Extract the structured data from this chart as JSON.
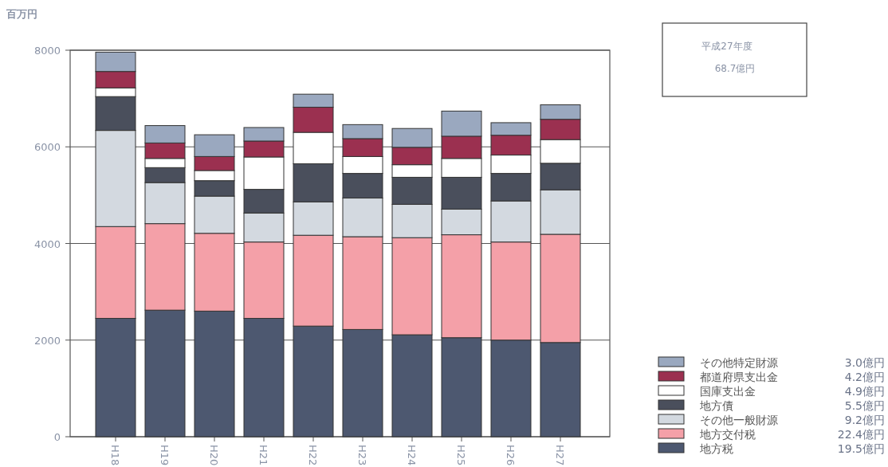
{
  "chart_data": {
    "type": "bar",
    "stacked": true,
    "ylabel": "百万円",
    "categories": [
      "H18",
      "H19",
      "H20",
      "H21",
      "H22",
      "H23",
      "H24",
      "H25",
      "H26",
      "H27"
    ],
    "series": [
      {
        "name": "地方税",
        "color": "#4d5870",
        "values": [
          2450,
          2620,
          2600,
          2450,
          2290,
          2220,
          2110,
          2050,
          2000,
          1950
        ]
      },
      {
        "name": "地方交付税",
        "color": "#f4a0a8",
        "values": [
          1900,
          1790,
          1610,
          1580,
          1880,
          1920,
          2010,
          2130,
          2030,
          2240
        ]
      },
      {
        "name": "その他一般財源",
        "color": "#d3d9e0",
        "values": [
          1990,
          850,
          770,
          600,
          690,
          800,
          690,
          530,
          850,
          920
        ]
      },
      {
        "name": "地方債",
        "color": "#4a4f5c",
        "values": [
          700,
          310,
          320,
          490,
          790,
          510,
          560,
          660,
          570,
          550
        ]
      },
      {
        "name": "国庫支出金",
        "color": "#ffffff",
        "values": [
          180,
          190,
          210,
          670,
          650,
          350,
          260,
          390,
          380,
          490
        ]
      },
      {
        "name": "都道府県支出金",
        "color": "#9b3050",
        "values": [
          340,
          320,
          290,
          330,
          520,
          370,
          360,
          460,
          410,
          420
        ]
      },
      {
        "name": "その他特定財源",
        "color": "#9aa8bf",
        "values": [
          400,
          360,
          450,
          280,
          270,
          290,
          390,
          520,
          260,
          300
        ]
      }
    ],
    "ylim": [
      0,
      8000
    ],
    "yticks": [
      0,
      2000,
      4000,
      6000,
      8000
    ],
    "grid": "y",
    "legend": "bottom right",
    "annotations": [
      "平成27年度",
      "68.7億円",
      "19.5億円",
      "22.4億円",
      "9.2億円",
      "5.5億円",
      "4.9億円",
      "4.2億円",
      "3.0億円"
    ]
  }
}
